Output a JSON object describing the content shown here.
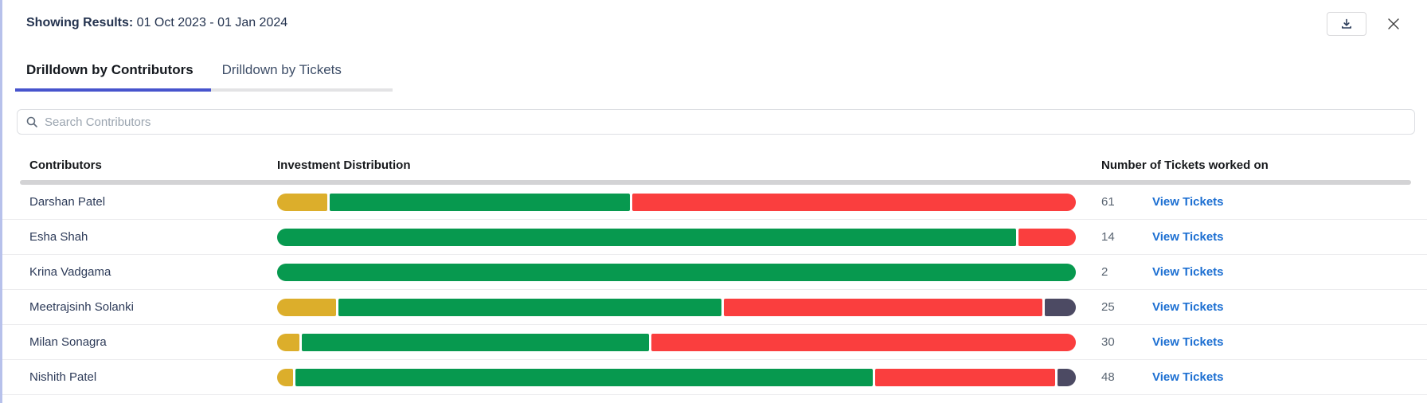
{
  "header": {
    "showing_results_label": "Showing Results:",
    "date_range": " 01 Oct 2023 - 01 Jan 2024"
  },
  "tabs": [
    {
      "label": "Drilldown by Contributors",
      "active": true
    },
    {
      "label": "Drilldown by Tickets",
      "active": false
    }
  ],
  "search": {
    "placeholder": "Search Contributors"
  },
  "table": {
    "columns": {
      "contributors": "Contributors",
      "distribution": "Investment Distribution",
      "tickets": "Number of Tickets worked on"
    },
    "view_tickets_label": "View Tickets",
    "rows": [
      {
        "name": "Darshan Patel",
        "tickets": "61",
        "segments": [
          {
            "color": "yellow",
            "pct": 6.3
          },
          {
            "color": "green",
            "pct": 37.8
          },
          {
            "color": "red",
            "pct": 55.9
          }
        ]
      },
      {
        "name": "Esha Shah",
        "tickets": "14",
        "segments": [
          {
            "color": "green",
            "pct": 92.8
          },
          {
            "color": "red",
            "pct": 7.2
          }
        ]
      },
      {
        "name": "Krina Vadgama",
        "tickets": "2",
        "segments": [
          {
            "color": "green",
            "pct": 100
          }
        ]
      },
      {
        "name": "Meetrajsinh Solanki",
        "tickets": "25",
        "segments": [
          {
            "color": "yellow",
            "pct": 7.4
          },
          {
            "color": "green",
            "pct": 48.2
          },
          {
            "color": "red",
            "pct": 40.0
          },
          {
            "color": "dark",
            "pct": 3.9
          }
        ]
      },
      {
        "name": "Milan Sonagra",
        "tickets": "30",
        "segments": [
          {
            "color": "yellow",
            "pct": 2.8
          },
          {
            "color": "green",
            "pct": 43.6
          },
          {
            "color": "red",
            "pct": 53.4
          }
        ]
      },
      {
        "name": "Nishith Patel",
        "tickets": "48",
        "segments": [
          {
            "color": "yellow",
            "pct": 2.0
          },
          {
            "color": "green",
            "pct": 72.6
          },
          {
            "color": "red",
            "pct": 22.6
          },
          {
            "color": "dark",
            "pct": 2.3
          }
        ]
      }
    ]
  },
  "colors": {
    "yellow": "#dcae2b",
    "green": "#07994f",
    "red": "#fa3e3e",
    "dark": "#4c4a63",
    "active_tab_underline": "#4754cd",
    "link_blue": "#1c6fd2"
  },
  "icons": {
    "download": "download-icon",
    "close": "close-icon",
    "search": "search-icon"
  }
}
